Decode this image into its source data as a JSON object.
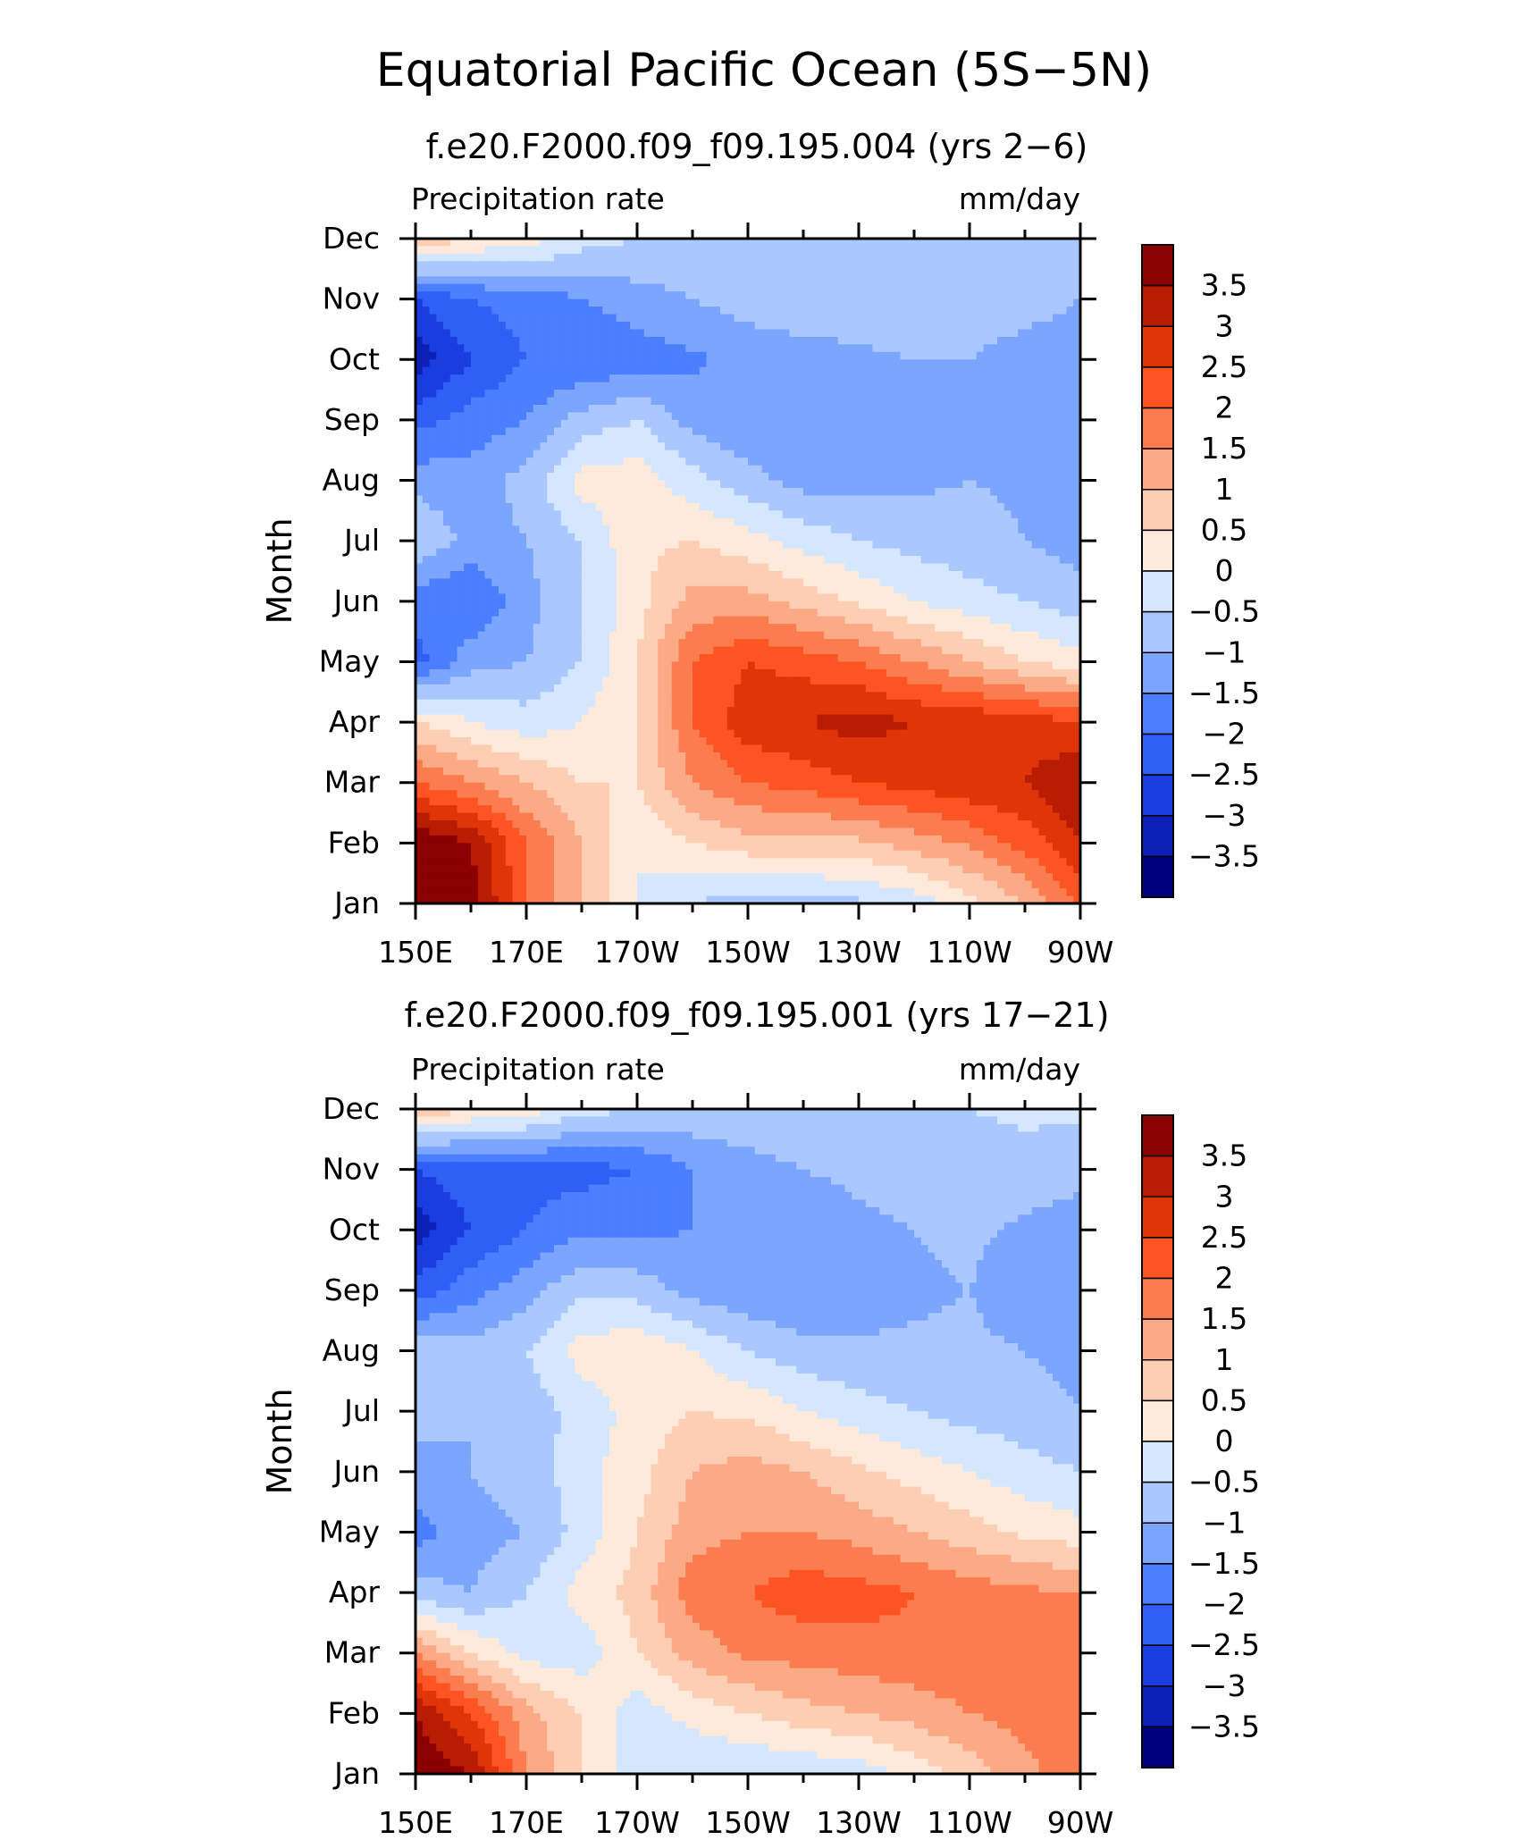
{
  "main_title": "Equatorial Pacific Ocean (5S−5N)",
  "colors": {
    "levels": [
      "#00007f",
      "#0c20b6",
      "#1a3de0",
      "#2f5ff5",
      "#4b7fff",
      "#7ba5ff",
      "#aac7ff",
      "#d5e6ff",
      "#feeadb",
      "#fdcdb4",
      "#fca986",
      "#fb7c4e",
      "#fc5523",
      "#e03508",
      "#b81c03",
      "#8b0000"
    ]
  },
  "chart_data": [
    {
      "type": "heatmap",
      "title": "f.e20.F2000.f09_f09.195.004 (yrs 2−6)",
      "left_label": "Precipitation rate",
      "right_label": "mm/day",
      "ylabel": "Month",
      "xlabel": "",
      "x_ticks": [
        "150E",
        "170E",
        "170W",
        "150W",
        "130W",
        "110W",
        "90W"
      ],
      "x_range_deg": [
        150,
        270
      ],
      "months": [
        "Jan",
        "Feb",
        "Mar",
        "Apr",
        "May",
        "Jun",
        "Jul",
        "Aug",
        "Sep",
        "Oct",
        "Nov",
        "Dec"
      ],
      "colorbar_labels": [
        "3.5",
        "3",
        "2.5",
        "2",
        "1.5",
        "1",
        "0.5",
        "0",
        "−0.5",
        "−1",
        "−1.5",
        "−2",
        "−2.5",
        "−3",
        "−3.5"
      ],
      "levels": [
        -3.5,
        -3,
        -2.5,
        -2,
        -1.5,
        -1,
        -0.5,
        0,
        0.5,
        1,
        1.5,
        2,
        2.5,
        3,
        3.5
      ],
      "lon_nodes": [
        150,
        160,
        170,
        180,
        190,
        200,
        210,
        220,
        230,
        240,
        250,
        260,
        270
      ],
      "values": [
        [
          4.0,
          3.8,
          2.0,
          1.0,
          0.0,
          -0.5,
          -0.8,
          -0.7,
          -0.6,
          -0.3,
          0.3,
          1.0,
          2.0
        ],
        [
          4.0,
          3.5,
          2.0,
          1.0,
          0.0,
          0.5,
          0.8,
          0.8,
          0.9,
          1.2,
          1.6,
          2.2,
          3.0
        ],
        [
          2.0,
          1.5,
          1.0,
          0.5,
          0.5,
          1.5,
          2.0,
          2.2,
          2.5,
          2.7,
          2.9,
          3.0,
          3.5
        ],
        [
          0.5,
          0.0,
          -0.3,
          0.0,
          0.5,
          2.0,
          2.8,
          3.0,
          3.2,
          3.0,
          2.9,
          2.8,
          2.5
        ],
        [
          -2.2,
          -1.2,
          -1.0,
          -0.5,
          0.5,
          2.0,
          2.5,
          2.3,
          2.0,
          1.5,
          1.0,
          0.5,
          0.2
        ],
        [
          -1.8,
          -2.0,
          -1.2,
          -0.5,
          0.3,
          1.2,
          1.2,
          0.8,
          0.4,
          0.0,
          -0.3,
          -0.5,
          -0.8
        ],
        [
          -0.5,
          -1.2,
          -1.0,
          -0.5,
          0.4,
          0.5,
          0.2,
          -0.2,
          -0.5,
          -0.7,
          -0.8,
          -1.0,
          -1.2
        ],
        [
          -1.2,
          -1.3,
          -0.8,
          0.2,
          0.3,
          -0.3,
          -0.8,
          -1.2,
          -1.2,
          -1.1,
          -1.0,
          -1.1,
          -1.3
        ],
        [
          -2.2,
          -1.8,
          -1.5,
          -0.8,
          -0.5,
          -1.2,
          -1.5,
          -1.5,
          -1.3,
          -1.2,
          -1.1,
          -1.2,
          -1.4
        ],
        [
          -3.3,
          -2.5,
          -2.0,
          -2.0,
          -1.8,
          -1.6,
          -1.3,
          -1.2,
          -1.1,
          -1.0,
          -1.0,
          -1.2,
          -1.3
        ],
        [
          -2.5,
          -2.0,
          -1.8,
          -1.5,
          -1.2,
          -1.0,
          -0.8,
          -0.7,
          -0.7,
          -0.7,
          -0.7,
          -0.8,
          -1.0
        ],
        [
          1.0,
          0.5,
          0.3,
          -0.3,
          -0.5,
          -0.6,
          -0.6,
          -0.6,
          -0.6,
          -0.6,
          -0.6,
          -0.6,
          -0.6
        ]
      ]
    },
    {
      "type": "heatmap",
      "title": "f.e20.F2000.f09_f09.195.001 (yrs 17−21)",
      "left_label": "Precipitation rate",
      "right_label": "mm/day",
      "ylabel": "Month",
      "xlabel": "",
      "x_ticks": [
        "150E",
        "170E",
        "170W",
        "150W",
        "130W",
        "110W",
        "90W"
      ],
      "x_range_deg": [
        150,
        270
      ],
      "months": [
        "Jan",
        "Feb",
        "Mar",
        "Apr",
        "May",
        "Jun",
        "Jul",
        "Aug",
        "Sep",
        "Oct",
        "Nov",
        "Dec"
      ],
      "colorbar_labels": [
        "3.5",
        "3",
        "2.5",
        "2",
        "1.5",
        "1",
        "0.5",
        "0",
        "−0.5",
        "−1",
        "−1.5",
        "−2",
        "−2.5",
        "−3",
        "−3.5"
      ],
      "levels": [
        -3.5,
        -3,
        -2.5,
        -2,
        -1.5,
        -1,
        -0.5,
        0,
        0.5,
        1,
        1.5,
        2,
        2.5,
        3,
        3.5
      ],
      "lon_nodes": [
        150,
        160,
        170,
        180,
        190,
        200,
        210,
        220,
        230,
        240,
        250,
        260,
        270
      ],
      "values": [
        [
          4.0,
          3.5,
          1.5,
          0.5,
          -0.3,
          -0.5,
          -0.5,
          -0.4,
          -0.3,
          0.2,
          0.7,
          1.3,
          2.0
        ],
        [
          3.5,
          2.5,
          1.2,
          0.5,
          -0.3,
          0.2,
          0.5,
          0.8,
          1.0,
          1.2,
          1.5,
          1.7,
          2.0
        ],
        [
          1.5,
          0.5,
          -0.2,
          -0.3,
          0.5,
          1.2,
          1.6,
          1.7,
          1.8,
          1.9,
          1.9,
          2.0,
          2.0
        ],
        [
          -0.8,
          -1.0,
          -0.5,
          0.2,
          0.7,
          1.8,
          2.0,
          2.3,
          2.2,
          2.0,
          1.8,
          1.6,
          1.5
        ],
        [
          -1.7,
          -1.2,
          -1.0,
          -0.3,
          0.5,
          1.3,
          1.5,
          1.5,
          1.3,
          1.0,
          0.7,
          0.4,
          0.2
        ],
        [
          -1.2,
          -1.0,
          -0.8,
          -0.2,
          0.3,
          1.0,
          1.2,
          1.0,
          0.6,
          0.3,
          0.0,
          -0.3,
          -0.5
        ],
        [
          -0.8,
          -1.0,
          -0.8,
          -0.3,
          0.2,
          0.5,
          0.4,
          0.0,
          -0.3,
          -0.5,
          -0.7,
          -0.8,
          -1.0
        ],
        [
          -0.6,
          -0.8,
          -0.5,
          0.2,
          0.4,
          0.0,
          -0.5,
          -0.8,
          -0.9,
          -0.9,
          -0.9,
          -1.0,
          -1.2
        ],
        [
          -2.3,
          -1.7,
          -1.2,
          -0.6,
          -0.7,
          -1.2,
          -1.4,
          -1.5,
          -1.3,
          -1.1,
          -1.0,
          -1.3,
          -1.4
        ],
        [
          -3.3,
          -2.5,
          -2.0,
          -1.6,
          -1.6,
          -1.5,
          -1.4,
          -1.3,
          -1.1,
          -1.0,
          -0.9,
          -1.1,
          -1.3
        ],
        [
          -2.5,
          -2.2,
          -2.2,
          -2.2,
          -2.0,
          -1.5,
          -1.2,
          -1.0,
          -0.9,
          -0.8,
          -0.7,
          -0.7,
          -0.8
        ],
        [
          1.0,
          0.5,
          0.3,
          -0.3,
          -0.5,
          -0.6,
          -0.6,
          -0.6,
          -0.5,
          -0.5,
          -0.5,
          -0.4,
          -0.4
        ]
      ]
    }
  ]
}
